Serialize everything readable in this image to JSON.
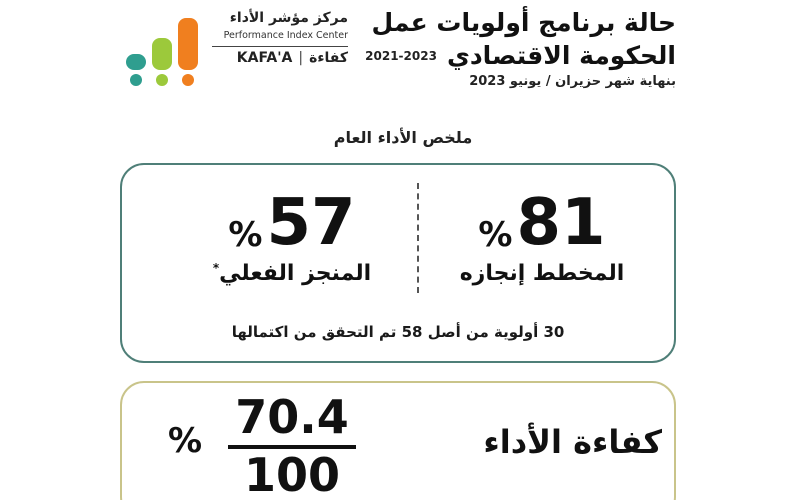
{
  "header": {
    "title_line1": "حالة برنامج أولويات عمل",
    "title_line2": "الحكومة الاقتصادي",
    "years": "2021-2023",
    "date_line": "بنهاية شهر حزيران / يونيو 2023"
  },
  "logo": {
    "name_ar": "مركز مؤشر الأداء",
    "name_en": "Performance Index Center",
    "brand_en": "KAFA'A",
    "separator": "|",
    "brand_ar": "كفاءة",
    "colors": [
      "#2f9e8f",
      "#9cc93b",
      "#f07f1f"
    ]
  },
  "summary": {
    "title": "ملخص الأداء العام",
    "planned": {
      "value": "81",
      "percent_sign": "%",
      "label": "المخطط إنجازه"
    },
    "actual": {
      "value": "57",
      "percent_sign": "%",
      "label": "المنجز الفعلي",
      "marker": "*"
    },
    "note": "30 أولوية من أصل 58 تم التحقق من اكتمالها"
  },
  "efficiency": {
    "label": "كفاءة الأداء",
    "numerator": "70.4",
    "denominator": "100",
    "percent_sign": "%"
  },
  "colors": {
    "summary_border": "#4f7f78",
    "efficiency_border": "#c9c48a"
  }
}
